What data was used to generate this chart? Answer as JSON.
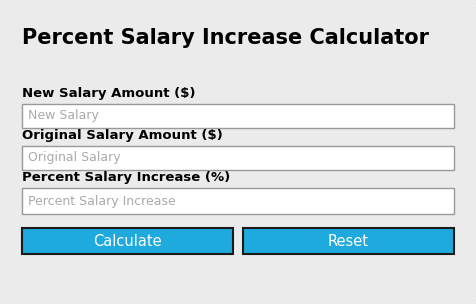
{
  "title": "Percent Salary Increase Calculator",
  "title_fontsize": 15,
  "title_fontweight": "bold",
  "background_color": "#dcdcdc",
  "card_color": "#ebebeb",
  "input_bg": "#ffffff",
  "input_border": "#999999",
  "button_color": "#1eaadc",
  "button_border": "#1a1a1a",
  "button_text_color": "#ffffff",
  "label_color": "#000000",
  "placeholder_color": "#aaaaaa",
  "labels": [
    "New Salary Amount ($)",
    "Original Salary Amount ($)",
    "Percent Salary Increase (%)"
  ],
  "placeholders": [
    "New Salary",
    "Original Salary",
    "Percent Salary Increase"
  ],
  "buttons": [
    "Calculate",
    "Reset"
  ],
  "label_fontsize": 9.5,
  "placeholder_fontsize": 9,
  "button_fontsize": 10.5
}
